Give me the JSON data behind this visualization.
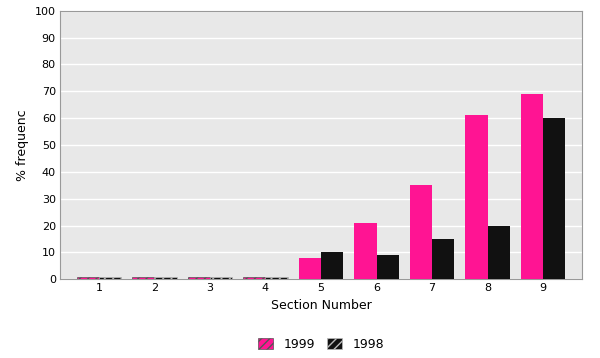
{
  "categories": [
    1,
    2,
    3,
    4,
    5,
    6,
    7,
    8,
    9
  ],
  "values_1999": [
    1,
    1,
    1,
    1,
    8,
    21,
    35,
    61,
    69
  ],
  "values_1998": [
    1,
    1,
    1,
    1,
    10,
    9,
    15,
    20,
    60
  ],
  "zero_hatch_indices": [
    0,
    1,
    2,
    3
  ],
  "color_1999": "#FF1493",
  "color_1998": "#111111",
  "hatch_color_1999": "#FF1493",
  "hatch_color_1998": "#111111",
  "xlabel": "Section Number",
  "ylabel": "% frequenc",
  "ylim": [
    0,
    100
  ],
  "yticks": [
    0,
    10,
    20,
    30,
    40,
    50,
    60,
    70,
    80,
    90,
    100
  ],
  "legend_labels": [
    "1999",
    "1998"
  ],
  "bar_width": 0.4,
  "plot_bg_color": "#e8e8e8",
  "fig_bg_color": "#ffffff",
  "grid_color": "#ffffff",
  "spine_color": "#999999",
  "tick_fontsize": 8,
  "label_fontsize": 9,
  "legend_fontsize": 9
}
